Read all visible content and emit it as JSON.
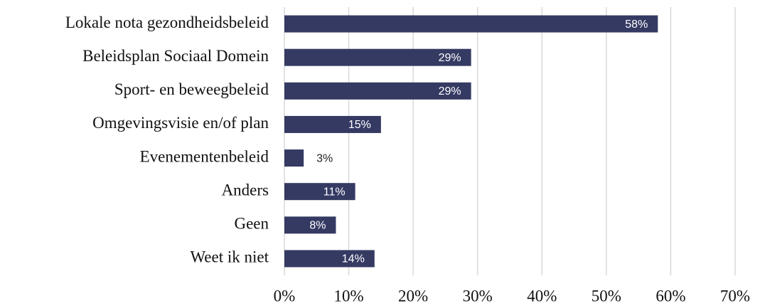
{
  "chart_data": {
    "type": "bar",
    "orientation": "horizontal",
    "categories": [
      "Lokale nota gezondheidsbeleid",
      "Beleidsplan Sociaal Domein",
      "Sport- en beweegbeleid",
      "Omgevingsvisie en/of plan",
      "Evenementenbeleid",
      "Anders",
      "Geen",
      "Weet ik niet"
    ],
    "values": [
      58,
      29,
      29,
      15,
      3,
      11,
      8,
      14
    ],
    "value_labels": [
      "58%",
      "29%",
      "29%",
      "15%",
      "3%",
      "11%",
      "8%",
      "14%"
    ],
    "color": "#353a63",
    "xlim": [
      0,
      70
    ],
    "xticks": [
      {
        "value": 0,
        "label": "0%"
      },
      {
        "value": 10,
        "label": "10%"
      },
      {
        "value": 20,
        "label": "20%"
      },
      {
        "value": 30,
        "label": "30%"
      },
      {
        "value": 40,
        "label": "40%"
      },
      {
        "value": 50,
        "label": "50%"
      },
      {
        "value": 60,
        "label": "60%"
      },
      {
        "value": 70,
        "label": "70%"
      }
    ],
    "grid": true
  }
}
